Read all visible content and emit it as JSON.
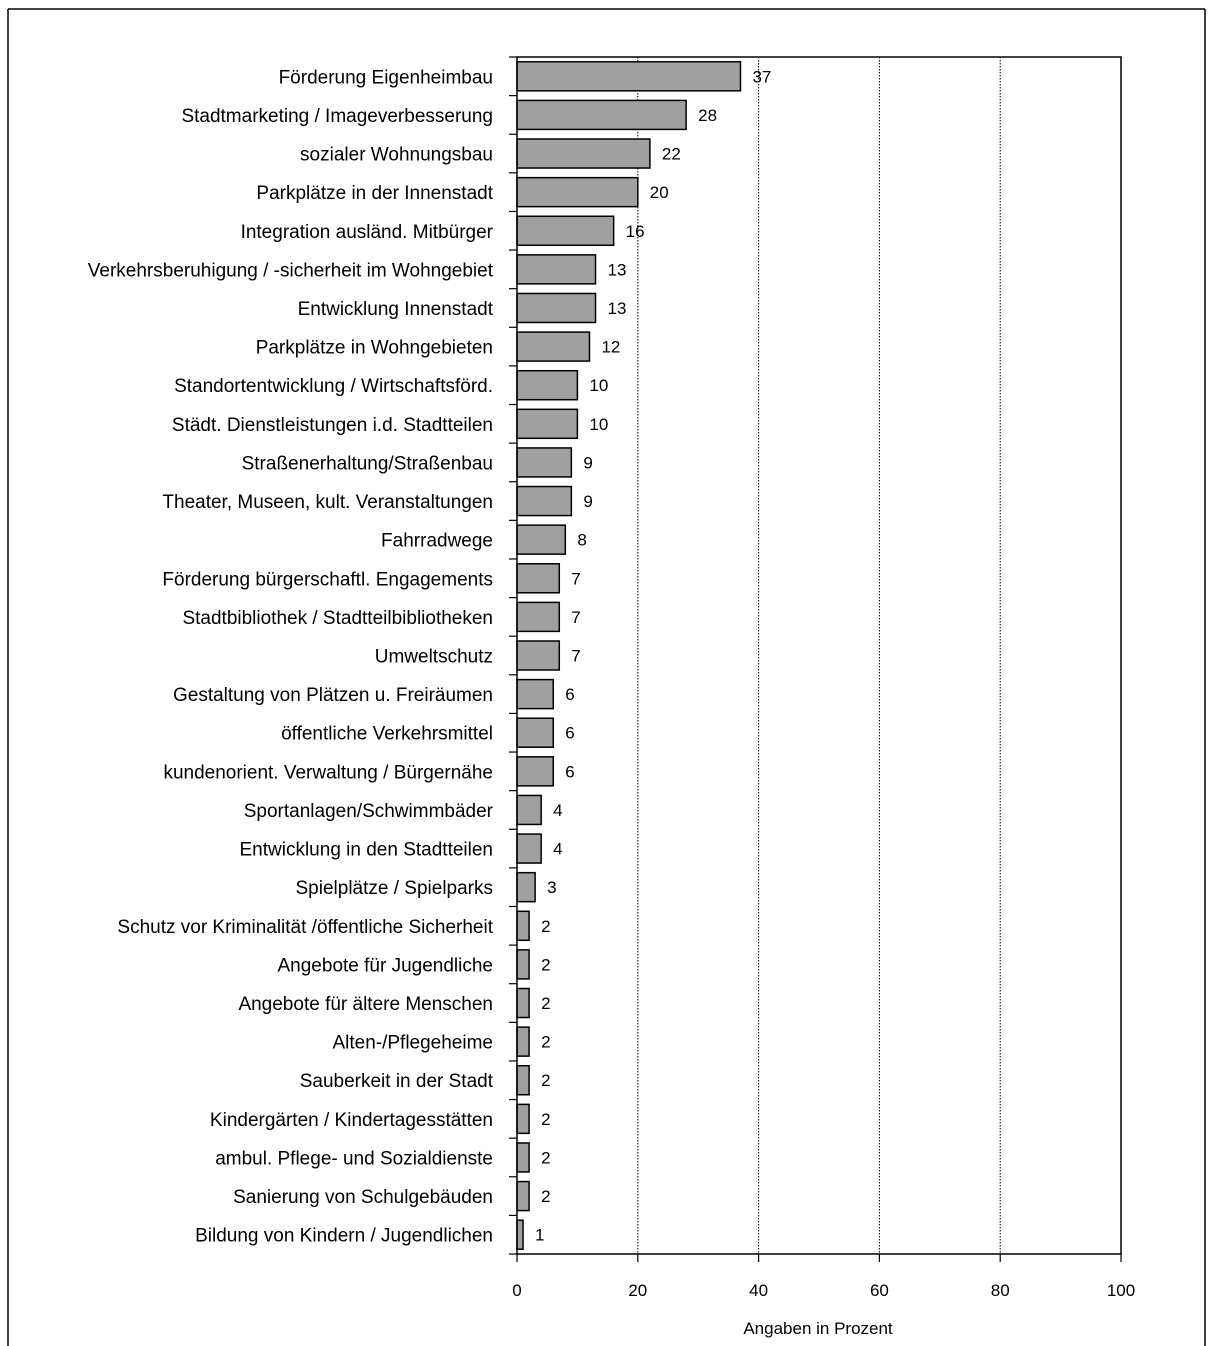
{
  "chart_data": {
    "type": "bar",
    "orientation": "horizontal",
    "categories": [
      "Förderung Eigenheimbau",
      "Stadtmarketing / Imageverbesserung",
      "sozialer Wohnungsbau",
      "Parkplätze in der Innenstadt",
      "Integration ausländ. Mitbürger",
      "Verkehrsberuhigung / -sicherheit im Wohngebiet",
      "Entwicklung Innenstadt",
      "Parkplätze in Wohngebieten",
      "Standortentwicklung / Wirtschaftsförd.",
      "Städt. Dienstleistungen i.d. Stadtteilen",
      "Straßenerhaltung/Straßenbau",
      "Theater, Museen, kult. Veranstaltungen",
      "Fahrradwege",
      "Förderung bürgerschaftl. Engagements",
      "Stadtbibliothek / Stadtteilbibliotheken",
      "Umweltschutz",
      "Gestaltung von Plätzen u. Freiräumen",
      "öffentliche Verkehrsmittel",
      "kundenorient. Verwaltung / Bürgernähe",
      "Sportanlagen/Schwimmbäder",
      "Entwicklung in den Stadtteilen",
      "Spielplätze / Spielparks",
      "Schutz vor Kriminalität /öffentliche Sicherheit",
      "Angebote für Jugendliche",
      "Angebote für ältere Menschen",
      "Alten-/Pflegeheime",
      "Sauberkeit in der Stadt",
      "Kindergärten / Kindertagesstätten",
      "ambul. Pflege- und Sozialdienste",
      "Sanierung von Schulgebäuden",
      "Bildung von Kindern / Jugendlichen"
    ],
    "values": [
      37,
      28,
      22,
      20,
      16,
      13,
      13,
      12,
      10,
      10,
      9,
      9,
      8,
      7,
      7,
      7,
      6,
      6,
      6,
      4,
      4,
      3,
      2,
      2,
      2,
      2,
      2,
      2,
      2,
      2,
      1
    ],
    "xlabel": "Angaben in Prozent",
    "xlim": [
      0,
      100
    ],
    "xticks": [
      0,
      20,
      40,
      60,
      80,
      100
    ],
    "grid": "vertical dotted",
    "bar_color": "#a0a0a0",
    "bar_edge_color": "#000000"
  }
}
